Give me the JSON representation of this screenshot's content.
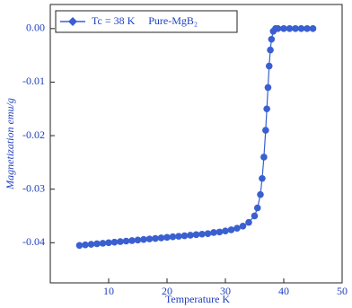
{
  "chart_data": {
    "type": "scatter",
    "xlabel": "Temperature   K",
    "ylabel": "Magnetization    emu/g",
    "xlim": [
      0,
      50
    ],
    "xticks": [
      10,
      20,
      30,
      40,
      50
    ],
    "ylim": [
      -0.0475,
      0.0045
    ],
    "yticks": [
      {
        "value": 0,
        "label": "0.00"
      },
      -0.01,
      -0.02,
      -0.03,
      -0.04
    ],
    "legend": "upper left",
    "series": [
      {
        "name": "Tc = 38 K     Pure-MgB₂",
        "color": "#3a5fd0",
        "x": [
          5,
          6,
          7,
          8,
          9,
          10,
          11,
          12,
          13,
          14,
          15,
          16,
          17,
          18,
          19,
          20,
          21,
          22,
          23,
          24,
          25,
          26,
          27,
          28,
          29,
          30,
          31,
          32,
          33,
          34,
          35,
          35.5,
          36,
          36.3,
          36.6,
          36.9,
          37.1,
          37.3,
          37.5,
          37.7,
          37.9,
          38.2,
          38.6,
          39,
          40,
          41,
          42,
          43,
          44,
          45
        ],
        "values": [
          -0.0405,
          -0.0404,
          -0.0403,
          -0.0402,
          -0.0401,
          -0.04,
          -0.0399,
          -0.0398,
          -0.0397,
          -0.0396,
          -0.0395,
          -0.0394,
          -0.0393,
          -0.0392,
          -0.0391,
          -0.039,
          -0.0389,
          -0.0388,
          -0.0387,
          -0.0386,
          -0.0385,
          -0.0384,
          -0.0383,
          -0.0381,
          -0.038,
          -0.0378,
          -0.0376,
          -0.0373,
          -0.0369,
          -0.0362,
          -0.035,
          -0.0335,
          -0.031,
          -0.028,
          -0.024,
          -0.019,
          -0.015,
          -0.011,
          -0.007,
          -0.004,
          -0.002,
          -0.0005,
          0,
          0,
          0,
          0,
          0,
          0,
          0,
          0
        ]
      }
    ]
  }
}
